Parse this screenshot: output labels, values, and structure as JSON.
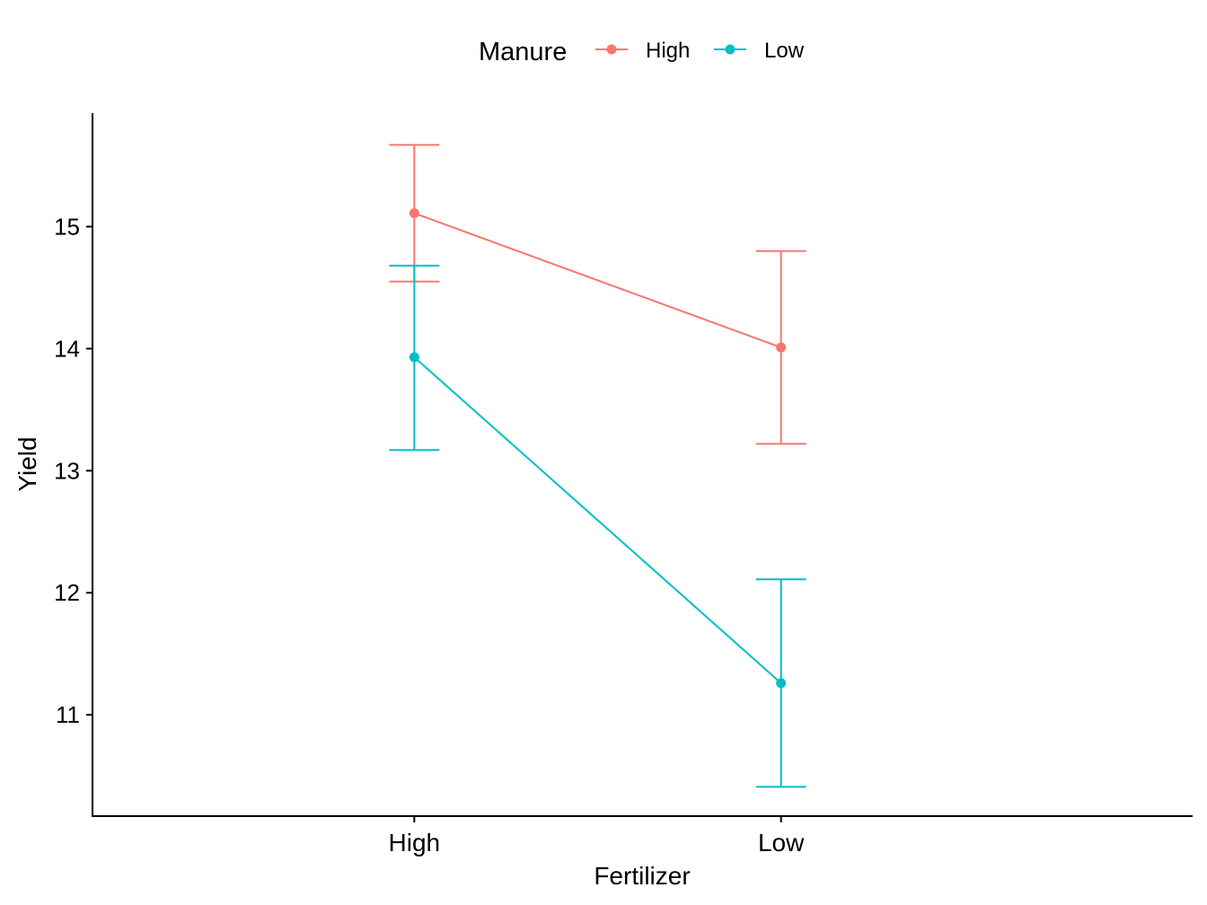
{
  "chart_data": {
    "type": "line",
    "xlabel": "Fertilizer",
    "ylabel": "Yield",
    "categories": [
      "High",
      "Low"
    ],
    "ylim": [
      10.17,
      15.93
    ],
    "yticks": [
      11,
      12,
      13,
      14,
      15
    ],
    "legend": {
      "title": "Manure",
      "position": "top"
    },
    "grid": false,
    "series": [
      {
        "name": "High",
        "color": "#F8766D",
        "values": [
          15.11,
          14.01
        ],
        "lower": [
          14.55,
          13.22
        ],
        "upper": [
          15.67,
          14.8
        ]
      },
      {
        "name": "Low",
        "color": "#00BFC4",
        "values": [
          13.93,
          11.26
        ],
        "lower": [
          13.17,
          10.41
        ],
        "upper": [
          14.68,
          12.11
        ]
      }
    ]
  }
}
